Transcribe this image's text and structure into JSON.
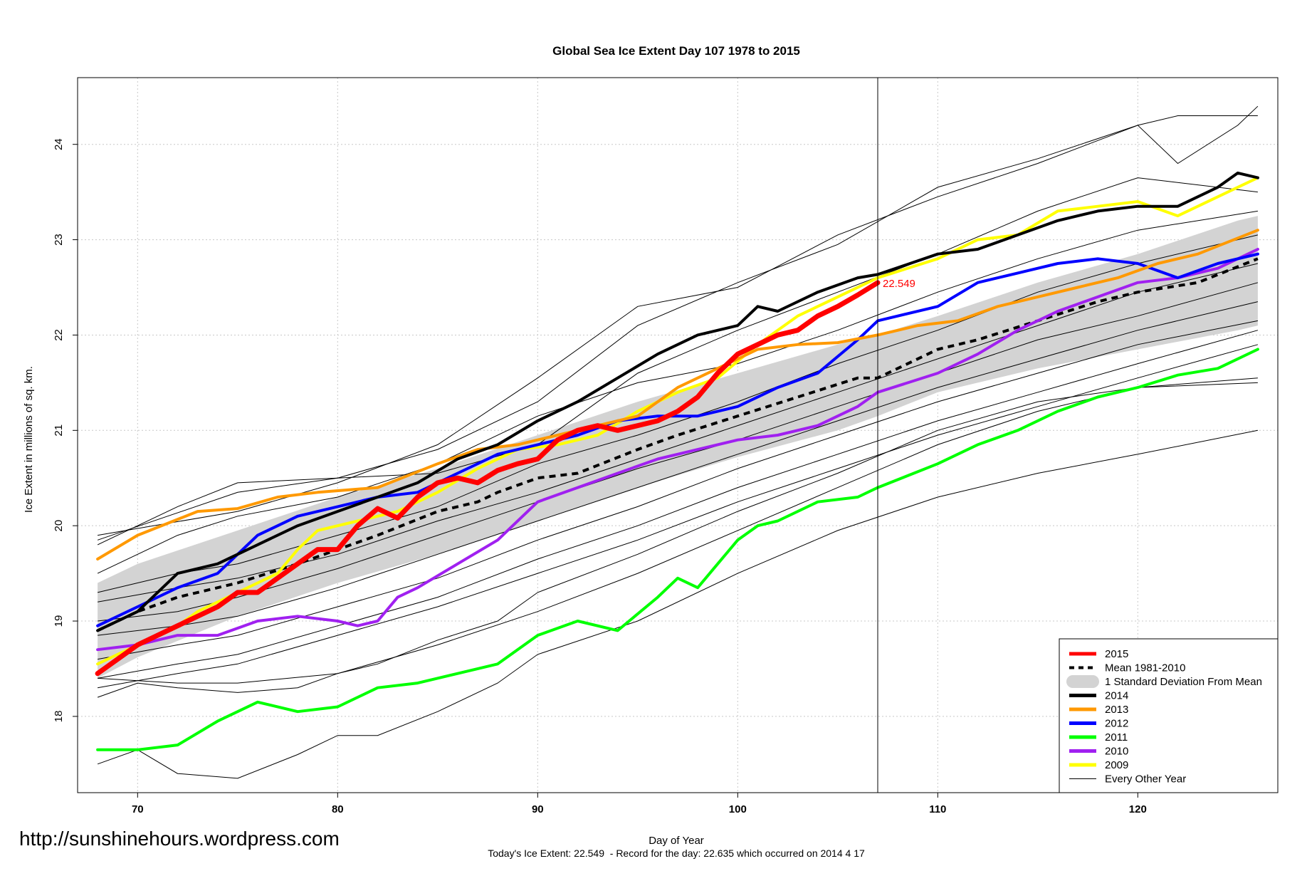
{
  "chart_data": {
    "type": "line",
    "title": "Global Sea Ice Extent Day 107 1978 to 2015",
    "xlabel": "Day of Year",
    "ylabel": "Ice Extent in millions of sq. km.",
    "subtitle": "Today's Ice Extent: 22.549  - Record for the day: 22.635 which occurred on 2014 4 17",
    "watermark": "http://sunshinehours.wordpress.com",
    "xlim": [
      67,
      127
    ],
    "ylim": [
      17.2,
      24.7
    ],
    "x_ticks": [
      70,
      80,
      90,
      100,
      110,
      120
    ],
    "y_ticks": [
      18,
      19,
      20,
      21,
      22,
      23,
      24
    ],
    "x_tick_labels": [
      "70",
      "80",
      "90",
      "100",
      "110",
      "120"
    ],
    "y_tick_labels": [
      "18",
      "19",
      "20",
      "21",
      "22",
      "23",
      "24"
    ],
    "grid": true,
    "legend_position": "bottom-right",
    "current_day_line": 107,
    "annotation": {
      "x": 107,
      "y": 22.549,
      "text": "22.549",
      "color": "#ff0000"
    },
    "legend": [
      {
        "label": "2015",
        "color": "#ff0000",
        "style": "thick"
      },
      {
        "label": "Mean 1981-2010",
        "color": "#000000",
        "style": "dashed"
      },
      {
        "label": "1 Standard Deviation From Mean",
        "color": "#d3d3d3",
        "style": "band"
      },
      {
        "label": "2014",
        "color": "#000000",
        "style": "thick"
      },
      {
        "label": "2013",
        "color": "#ff9900",
        "style": "thick"
      },
      {
        "label": "2012",
        "color": "#0000ff",
        "style": "thick"
      },
      {
        "label": "2011",
        "color": "#00ff00",
        "style": "thick"
      },
      {
        "label": "2010",
        "color": "#a020f0",
        "style": "thick"
      },
      {
        "label": "2009",
        "color": "#ffff00",
        "style": "thick"
      },
      {
        "label": "Every Other Year",
        "color": "#000000",
        "style": "thin"
      }
    ],
    "std_band": {
      "x": [
        68,
        70,
        75,
        80,
        85,
        90,
        95,
        100,
        105,
        107,
        110,
        115,
        120,
        125,
        126
      ],
      "lower": [
        18.4,
        18.62,
        19.05,
        19.4,
        19.7,
        20.05,
        20.4,
        20.72,
        21.0,
        21.15,
        21.4,
        21.65,
        21.85,
        22.05,
        22.1
      ],
      "upper": [
        19.4,
        19.6,
        19.95,
        20.3,
        20.6,
        20.95,
        21.3,
        21.6,
        21.9,
        22.0,
        22.2,
        22.55,
        22.85,
        23.2,
        23.25
      ]
    },
    "mean": {
      "x": [
        68,
        70,
        72,
        75,
        78,
        80,
        82,
        85,
        87,
        88,
        90,
        92,
        95,
        97,
        100,
        103,
        106,
        107,
        110,
        112,
        115,
        118,
        120,
        123,
        126
      ],
      "values": [
        18.9,
        19.1,
        19.25,
        19.4,
        19.6,
        19.75,
        19.9,
        20.15,
        20.25,
        20.35,
        20.5,
        20.55,
        20.8,
        20.95,
        21.15,
        21.35,
        21.55,
        21.55,
        21.85,
        21.95,
        22.15,
        22.35,
        22.45,
        22.55,
        22.8
      ]
    },
    "series": [
      {
        "name": "2015",
        "color": "#ff0000",
        "width": 7,
        "x": [
          68,
          70,
          72,
          74,
          75,
          76,
          78,
          79,
          80,
          81,
          82,
          83,
          84,
          85,
          86,
          87,
          88,
          89,
          90,
          91,
          92,
          93,
          94,
          95,
          96,
          97,
          98,
          99,
          100,
          101,
          102,
          103,
          104,
          105,
          106,
          107
        ],
        "values": [
          18.45,
          18.75,
          18.95,
          19.15,
          19.3,
          19.3,
          19.6,
          19.75,
          19.75,
          20.0,
          20.18,
          20.08,
          20.3,
          20.45,
          20.5,
          20.45,
          20.58,
          20.65,
          20.7,
          20.9,
          21.0,
          21.05,
          21.0,
          21.05,
          21.1,
          21.2,
          21.35,
          21.6,
          21.8,
          21.9,
          22.0,
          22.05,
          22.2,
          22.3,
          22.42,
          22.549
        ]
      },
      {
        "name": "2014",
        "color": "#000000",
        "width": 4,
        "x": [
          68,
          70,
          72,
          74,
          76,
          78,
          80,
          82,
          84,
          86,
          88,
          90,
          92,
          94,
          96,
          98,
          100,
          101,
          102,
          104,
          106,
          107,
          110,
          112,
          114,
          116,
          118,
          120,
          122,
          124,
          125,
          126
        ],
        "values": [
          18.9,
          19.1,
          19.5,
          19.6,
          19.8,
          20.0,
          20.15,
          20.3,
          20.45,
          20.7,
          20.85,
          21.1,
          21.3,
          21.55,
          21.8,
          22.0,
          22.1,
          22.3,
          22.25,
          22.45,
          22.6,
          22.635,
          22.85,
          22.9,
          23.05,
          23.2,
          23.3,
          23.35,
          23.35,
          23.55,
          23.7,
          23.65
        ]
      },
      {
        "name": "2013",
        "color": "#ff9900",
        "width": 4,
        "x": [
          68,
          70,
          73,
          75,
          77,
          79,
          82,
          85,
          87,
          89,
          91,
          93,
          95,
          97,
          99,
          101,
          103,
          105,
          107,
          109,
          111,
          113,
          115,
          117,
          119,
          121,
          123,
          126
        ],
        "values": [
          19.65,
          19.9,
          20.15,
          20.18,
          20.3,
          20.35,
          20.4,
          20.65,
          20.8,
          20.85,
          20.95,
          21.05,
          21.15,
          21.45,
          21.65,
          21.85,
          21.9,
          21.92,
          22.0,
          22.1,
          22.15,
          22.3,
          22.4,
          22.5,
          22.6,
          22.75,
          22.85,
          23.1
        ]
      },
      {
        "name": "2012",
        "color": "#0000ff",
        "width": 4,
        "x": [
          68,
          70,
          72,
          74,
          76,
          78,
          80,
          82,
          84,
          86,
          88,
          90,
          92,
          94,
          96,
          98,
          100,
          102,
          104,
          106,
          107,
          110,
          112,
          114,
          116,
          118,
          120,
          122,
          124,
          126
        ],
        "values": [
          18.95,
          19.15,
          19.35,
          19.5,
          19.9,
          20.1,
          20.2,
          20.3,
          20.35,
          20.55,
          20.75,
          20.85,
          20.95,
          21.1,
          21.15,
          21.15,
          21.25,
          21.45,
          21.6,
          21.95,
          22.15,
          22.3,
          22.55,
          22.65,
          22.75,
          22.8,
          22.75,
          22.6,
          22.75,
          22.85
        ]
      },
      {
        "name": "2011",
        "color": "#00ff00",
        "width": 4,
        "x": [
          68,
          70,
          72,
          74,
          76,
          78,
          80,
          82,
          84,
          86,
          88,
          90,
          92,
          94,
          96,
          97,
          98,
          99,
          100,
          101,
          102,
          104,
          106,
          107,
          110,
          112,
          114,
          116,
          118,
          120,
          122,
          124,
          126
        ],
        "values": [
          17.65,
          17.65,
          17.7,
          17.95,
          18.15,
          18.05,
          18.1,
          18.3,
          18.35,
          18.45,
          18.55,
          18.85,
          19.0,
          18.9,
          19.25,
          19.45,
          19.35,
          19.6,
          19.85,
          20.0,
          20.05,
          20.25,
          20.3,
          20.4,
          20.65,
          20.85,
          21.0,
          21.2,
          21.35,
          21.45,
          21.58,
          21.65,
          21.85
        ]
      },
      {
        "name": "2010",
        "color": "#a020f0",
        "width": 4,
        "x": [
          68,
          70,
          72,
          74,
          76,
          78,
          80,
          81,
          82,
          83,
          84,
          86,
          88,
          90,
          92,
          94,
          96,
          98,
          100,
          102,
          104,
          106,
          107,
          110,
          112,
          114,
          116,
          118,
          120,
          122,
          124,
          126
        ],
        "values": [
          18.7,
          18.75,
          18.85,
          18.85,
          19.0,
          19.05,
          19.0,
          18.95,
          19.0,
          19.25,
          19.35,
          19.6,
          19.85,
          20.25,
          20.4,
          20.55,
          20.7,
          20.8,
          20.9,
          20.95,
          21.05,
          21.25,
          21.4,
          21.6,
          21.8,
          22.05,
          22.25,
          22.4,
          22.55,
          22.6,
          22.7,
          22.9
        ]
      },
      {
        "name": "2009",
        "color": "#ffff00",
        "width": 4,
        "x": [
          68,
          70,
          72,
          73,
          75,
          77,
          78,
          79,
          81,
          83,
          85,
          87,
          89,
          91,
          93,
          95,
          97,
          99,
          101,
          103,
          105,
          107,
          110,
          112,
          114,
          116,
          118,
          120,
          122,
          124,
          126
        ],
        "values": [
          18.55,
          18.75,
          18.95,
          19.1,
          19.3,
          19.5,
          19.75,
          19.95,
          20.05,
          20.15,
          20.35,
          20.6,
          20.8,
          20.85,
          20.95,
          21.2,
          21.4,
          21.55,
          21.9,
          22.2,
          22.4,
          22.6,
          22.8,
          23.0,
          23.05,
          23.3,
          23.35,
          23.4,
          23.25,
          23.45,
          23.65
        ]
      }
    ],
    "other_years": [
      {
        "x": [
          68,
          75,
          80,
          85,
          90,
          95,
          100,
          105,
          110,
          115,
          120,
          122,
          125,
          126
        ],
        "values": [
          19.9,
          20.15,
          20.45,
          20.85,
          21.55,
          22.3,
          22.5,
          23.05,
          23.45,
          23.8,
          24.2,
          23.8,
          24.2,
          24.4
        ]
      },
      {
        "x": [
          68,
          75,
          80,
          85,
          90,
          95,
          100,
          105,
          110,
          115,
          120,
          122,
          126
        ],
        "values": [
          19.85,
          20.35,
          20.5,
          20.8,
          21.3,
          22.1,
          22.55,
          22.95,
          23.55,
          23.85,
          24.2,
          24.3,
          24.3
        ]
      },
      {
        "x": [
          68,
          72,
          75,
          80,
          85,
          90,
          95,
          100,
          105,
          110,
          115,
          120,
          126
        ],
        "values": [
          19.8,
          20.2,
          20.45,
          20.5,
          20.55,
          20.85,
          21.6,
          22.05,
          22.45,
          22.85,
          23.3,
          23.65,
          23.5
        ]
      },
      {
        "x": [
          68,
          72,
          75,
          80,
          85,
          90,
          95,
          100,
          105,
          110,
          115,
          120,
          126
        ],
        "values": [
          19.5,
          19.9,
          20.1,
          20.3,
          20.65,
          21.15,
          21.5,
          21.7,
          22.05,
          22.45,
          22.8,
          23.1,
          23.3
        ]
      },
      {
        "x": [
          68,
          72,
          75,
          80,
          85,
          90,
          95,
          100,
          105,
          110,
          115,
          120,
          126
        ],
        "values": [
          19.3,
          19.5,
          19.6,
          19.9,
          20.2,
          20.65,
          20.95,
          21.3,
          21.7,
          22.05,
          22.45,
          22.75,
          23.05
        ]
      },
      {
        "x": [
          68,
          72,
          75,
          80,
          85,
          90,
          95,
          100,
          105,
          110,
          115,
          120,
          126
        ],
        "values": [
          19.2,
          19.35,
          19.45,
          19.7,
          20.05,
          20.35,
          20.7,
          21.05,
          21.4,
          21.75,
          22.1,
          22.45,
          22.75
        ]
      },
      {
        "x": [
          68,
          72,
          75,
          80,
          85,
          90,
          95,
          100,
          105,
          110,
          115,
          120,
          126
        ],
        "values": [
          19.0,
          19.1,
          19.25,
          19.55,
          19.9,
          20.25,
          20.6,
          20.9,
          21.25,
          21.6,
          21.95,
          22.2,
          22.55
        ]
      },
      {
        "x": [
          68,
          72,
          75,
          80,
          85,
          90,
          95,
          100,
          105,
          110,
          115,
          120,
          126
        ],
        "values": [
          18.85,
          18.95,
          19.05,
          19.35,
          19.7,
          20.05,
          20.4,
          20.75,
          21.1,
          21.45,
          21.75,
          22.05,
          22.35
        ]
      },
      {
        "x": [
          68,
          72,
          75,
          80,
          85,
          90,
          95,
          100,
          105,
          110,
          115,
          120,
          126
        ],
        "values": [
          18.6,
          18.75,
          18.85,
          19.15,
          19.45,
          19.85,
          20.2,
          20.6,
          20.95,
          21.3,
          21.6,
          21.9,
          22.15
        ]
      },
      {
        "x": [
          68,
          72,
          75,
          80,
          85,
          90,
          95,
          100,
          105,
          110,
          115,
          120,
          126
        ],
        "values": [
          18.4,
          18.55,
          18.65,
          18.95,
          19.25,
          19.65,
          20.0,
          20.4,
          20.75,
          21.1,
          21.4,
          21.7,
          22.05
        ]
      },
      {
        "x": [
          68,
          72,
          75,
          80,
          85,
          90,
          95,
          100,
          105,
          110,
          115,
          120,
          126
        ],
        "values": [
          18.3,
          18.45,
          18.55,
          18.85,
          19.15,
          19.5,
          19.85,
          20.25,
          20.6,
          20.95,
          21.25,
          21.55,
          21.9
        ]
      },
      {
        "x": [
          68,
          72,
          75,
          80,
          85,
          90,
          95,
          100,
          105,
          110,
          115,
          120,
          126
        ],
        "values": [
          18.4,
          18.35,
          18.35,
          18.45,
          18.75,
          19.1,
          19.5,
          19.95,
          20.4,
          20.85,
          21.2,
          21.45,
          21.55
        ]
      },
      {
        "x": [
          68,
          70,
          72,
          75,
          78,
          80,
          82,
          85,
          88,
          90,
          95,
          100,
          105,
          110,
          115,
          120,
          126
        ],
        "values": [
          18.2,
          18.35,
          18.3,
          18.25,
          18.3,
          18.45,
          18.55,
          18.8,
          19.0,
          19.3,
          19.7,
          20.15,
          20.55,
          21.0,
          21.3,
          21.45,
          21.5
        ]
      },
      {
        "x": [
          68,
          70,
          72,
          75,
          78,
          80,
          82,
          85,
          88,
          90,
          95,
          100,
          105,
          110,
          115,
          120,
          126
        ],
        "values": [
          17.5,
          17.65,
          17.4,
          17.35,
          17.6,
          17.8,
          17.8,
          18.05,
          18.35,
          18.65,
          19.0,
          19.5,
          19.95,
          20.3,
          20.55,
          20.75,
          21.0
        ]
      }
    ]
  }
}
